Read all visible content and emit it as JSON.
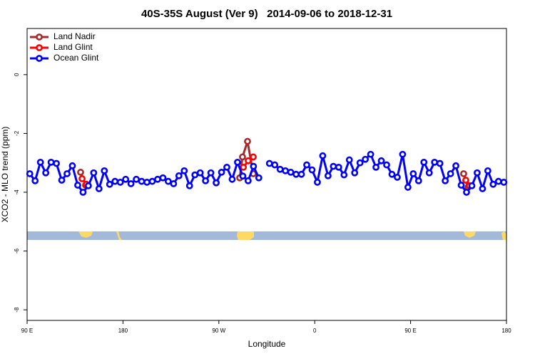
{
  "chart_data": {
    "type": "line",
    "title": "40S-35S August (Ver 9)   2014-09-06 to 2018-12-31",
    "x_label": "Longitude",
    "y_label": "XCO2 - MLO trend (ppm)",
    "xlim": [
      90,
      540
    ],
    "ylim": [
      -8.36,
      1.57
    ],
    "xticks": [
      {
        "value": 90,
        "label": "90 E"
      },
      {
        "value": 180,
        "label": "180"
      },
      {
        "value": 270,
        "label": "90 W"
      },
      {
        "value": 360,
        "label": "0"
      },
      {
        "value": 450,
        "label": "90 E"
      },
      {
        "value": 540,
        "label": "180"
      }
    ],
    "yticks": [
      -8,
      -6,
      -4,
      -2,
      0
    ],
    "legend": "top-left",
    "series": [
      {
        "name": "Land Nadir",
        "color": "#a52a2a",
        "x": [
          140.2,
          144.9,
          147,
          289.6,
          292.2,
          296.9,
          302.3,
          305,
          499.8,
          503.9
        ],
        "values": [
          -3.32,
          -3.76,
          null,
          -3.51,
          -2.8,
          -2.27,
          -3.37,
          null,
          -3.37,
          -3.83
        ]
      },
      {
        "name": "Land Glint",
        "color": "#ff0000",
        "x": [
          141.6,
          145.6,
          148,
          293,
          297.6,
          302.3,
          305,
          501.8,
          505.2
        ],
        "values": [
          -3.54,
          -3.73,
          null,
          -3.15,
          -2.93,
          -2.8,
          null,
          -3.59,
          -3.78
        ]
      },
      {
        "name": "Ocean Glint",
        "color": "#0000ff",
        "x": [
          92.5,
          97.5,
          102.5,
          107.5,
          112.5,
          117.5,
          122.5,
          127.5,
          132.5,
          137.5,
          142.5,
          147.5,
          152.5,
          157.5,
          162.5,
          167.5,
          172.5,
          177.5,
          182.5,
          187.5,
          192.5,
          197.5,
          202.5,
          207.5,
          212.5,
          217.5,
          222.5,
          227.5,
          232.5,
          237.5,
          242.5,
          247.5,
          252.5,
          257.5,
          262.5,
          267.5,
          272.5,
          277.5,
          282.5,
          287.5,
          292.5,
          297.5,
          302.5,
          307.5,
          312.5,
          317.5,
          322.5,
          327.5,
          332.5,
          337.5,
          342.5,
          347.5,
          352.5,
          357.5,
          362.5,
          367.5,
          372.5,
          377.5,
          382.5,
          387.5,
          392.5,
          397.5,
          402.5,
          407.5,
          412.5,
          417.5,
          422.5,
          427.5,
          432.5,
          437.5,
          442.5,
          447.5,
          452.5,
          457.5,
          462.5,
          467.5,
          472.5,
          477.5,
          482.5,
          487.5,
          492.5,
          497.5,
          502.5,
          507.5,
          512.5,
          517.5,
          522.5,
          527.5,
          532.5,
          537.5
        ],
        "values": [
          -3.37,
          -3.61,
          -2.98,
          -3.34,
          -2.98,
          -3.02,
          -3.59,
          -3.37,
          -3.1,
          -3.76,
          -4.0,
          -3.78,
          -3.34,
          -3.88,
          -3.27,
          -3.73,
          -3.63,
          -3.66,
          -3.56,
          -3.71,
          -3.56,
          -3.63,
          -3.66,
          -3.63,
          -3.56,
          -3.51,
          -3.63,
          -3.71,
          -3.44,
          -3.27,
          -3.78,
          -3.41,
          -3.34,
          -3.61,
          -3.34,
          -3.68,
          -3.32,
          -3.15,
          -3.56,
          -2.98,
          -3.45,
          -3.61,
          -3.12,
          -3.51,
          null,
          -3.02,
          -3.07,
          -3.22,
          -3.27,
          -3.32,
          -3.39,
          -3.39,
          -3.07,
          -3.24,
          -3.66,
          -2.76,
          -3.44,
          -3.12,
          -3.15,
          -3.41,
          -2.9,
          -3.34,
          -3.0,
          -2.88,
          -2.71,
          -3.15,
          -2.93,
          -3.07,
          -3.39,
          -3.49,
          -2.71,
          -3.83,
          -3.37,
          -3.61,
          -2.98,
          -3.34,
          -2.98,
          -3.02,
          -3.61,
          -3.37,
          -3.1,
          -3.76,
          -4.0,
          -3.78,
          -3.34,
          -3.88,
          -3.27,
          -3.73,
          -3.63,
          -3.66
        ]
      }
    ]
  }
}
